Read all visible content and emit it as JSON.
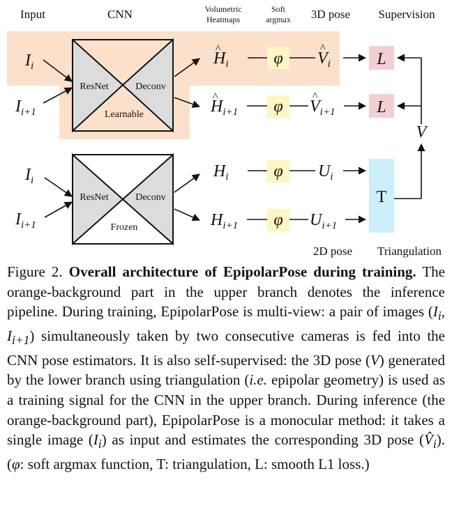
{
  "figure": {
    "headers": {
      "input": "Input",
      "cnn": "CNN",
      "volumetric_line1": "Volumetric",
      "volumetric_line2": "Heatmaps",
      "soft_line1": "Soft",
      "soft_line2": "argmax",
      "pose3d": "3D pose",
      "supervision": "Supervision"
    },
    "upper_branch": {
      "inputs": [
        "I_i",
        "I_{i+1}"
      ],
      "encoder_label": "ResNet",
      "decoder_label": "Deconv",
      "state_label": "Learnable",
      "heatmaps": [
        "Ĥ_i",
        "Ĥ_{i+1}"
      ],
      "softargmax_symbol": "φ",
      "poses": [
        "V̂_i",
        "V̂_{i+1}"
      ],
      "loss_label": "L"
    },
    "lower_branch": {
      "inputs": [
        "I_i",
        "I_{i+1}"
      ],
      "encoder_label": "ResNet",
      "decoder_label": "Deconv",
      "state_label": "Frozen",
      "heatmaps": [
        "H_i",
        "H_{i+1}"
      ],
      "softargmax_symbol": "φ",
      "poses": [
        "U_i",
        "U_{i+1}"
      ],
      "triangulation_label": "T"
    },
    "v_label": "V",
    "bottom_labels": {
      "pose2d": "2D pose",
      "triangulation": "Triangulation"
    },
    "colors": {
      "orange_background": "#fbe1cb",
      "network_fill": "#dcdcdc",
      "phi_box": "#fdf6c3",
      "loss_box": "#f2cfd0",
      "triangulation_box": "#cdeffa"
    }
  },
  "caption": {
    "figure_label": "Figure 2.",
    "title": "Overall architecture of EpipolarPose during training.",
    "sentence1": "The orange-background part in the upper branch denotes the inference pipeline.",
    "sentence2_a": "During training, EpipolarPose is multi-view: a pair of images (",
    "sentence2_math": "I_i, I_{i+1}",
    "sentence2_b": ") simultaneously taken by two consecutive cameras is fed into the CNN pose estimators.",
    "sentence3_a": "It is also self-supervised: the 3D pose (",
    "sentence3_math": "V",
    "sentence3_b": ") generated by the lower branch using triangulation (",
    "sentence3_ie": "i.e.",
    "sentence3_c": " epipolar geometry) is used as a training signal for the CNN in the upper branch.",
    "sentence4_a": "During inference (the orange-background part), EpipolarPose is a monocular method: it takes a single image (",
    "sentence4_math": "I_i",
    "sentence4_b": ") as input and estimates the corresponding 3D pose (",
    "sentence4_math2": "V̂_i",
    "sentence4_c": "). (",
    "phi_symbol": "φ",
    "sentence5": ": soft argmax function, T: triangulation, L: smooth L1 loss.)"
  }
}
